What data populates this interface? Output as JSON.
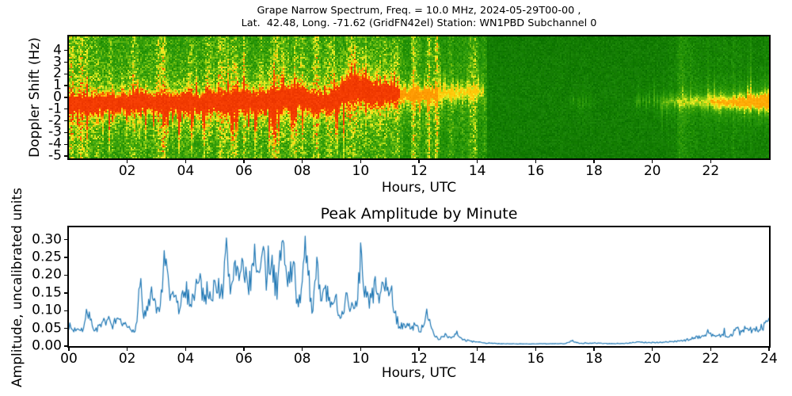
{
  "figure": {
    "title_line1": "Grape Narrow Spectrum, Freq. = 10.0 MHz, 2024-05-29T00-00 ,",
    "title_line2": "Lat.  42.48, Long. -71.62 (GridFN42el) Station: WN1PBD Subchannel 0"
  },
  "chart_data": [
    {
      "type": "heatmap",
      "name": "doppler-spectrogram",
      "xlabel": "Hours, UTC",
      "ylabel": "Doppler Shift (Hz)",
      "xlim": [
        0,
        24
      ],
      "ylim": [
        -5.2,
        5.2
      ],
      "xtick_values": [
        2,
        4,
        6,
        8,
        10,
        12,
        14,
        16,
        18,
        20,
        22
      ],
      "xtick_labels": [
        "02",
        "04",
        "06",
        "08",
        "10",
        "12",
        "14",
        "16",
        "18",
        "20",
        "22"
      ],
      "ytick_values": [
        4,
        3,
        2,
        1,
        0,
        -1,
        -2,
        -3,
        -4,
        -5
      ],
      "ytick_labels": [
        "4",
        "3",
        "2",
        "1",
        "0",
        "-1",
        "-2",
        "-3",
        "-4",
        "-5"
      ],
      "grid": false,
      "colormap": [
        [
          0.0,
          "#0b6e00"
        ],
        [
          0.18,
          "#1d8d06"
        ],
        [
          0.38,
          "#3fa50c"
        ],
        [
          0.52,
          "#7cc413"
        ],
        [
          0.63,
          "#c4e01a"
        ],
        [
          0.72,
          "#f2ea25"
        ],
        [
          0.8,
          "#ffc80a"
        ],
        [
          0.88,
          "#ff8c00"
        ],
        [
          1.0,
          "#f23b00"
        ]
      ],
      "background_noise_segments": [
        [
          0.0,
          11.35,
          0.42
        ],
        [
          11.35,
          12.65,
          0.34
        ],
        [
          12.65,
          14.35,
          0.27
        ],
        [
          14.35,
          20.5,
          0.1
        ],
        [
          20.5,
          24.0,
          0.13
        ]
      ],
      "intensity_caps": [
        [
          0.0,
          11.35,
          1.0
        ],
        [
          11.35,
          12.65,
          0.86
        ],
        [
          12.65,
          14.35,
          0.8
        ],
        [
          14.35,
          24.0,
          0.84
        ]
      ],
      "carrier_trace": [
        [
          0.0,
          -0.5,
          0.85,
          0.35
        ],
        [
          0.5,
          -0.6,
          0.85,
          0.35
        ],
        [
          1.0,
          -0.55,
          0.85,
          0.35
        ],
        [
          1.5,
          -0.5,
          0.88,
          0.35
        ],
        [
          2.0,
          -0.5,
          0.9,
          0.35
        ],
        [
          2.4,
          -0.15,
          0.9,
          0.4
        ],
        [
          2.8,
          -0.5,
          0.9,
          0.35
        ],
        [
          3.5,
          -0.45,
          0.92,
          0.38
        ],
        [
          4.0,
          -0.4,
          0.95,
          0.4
        ],
        [
          4.5,
          -0.5,
          0.92,
          0.38
        ],
        [
          5.0,
          -0.4,
          0.95,
          0.4
        ],
        [
          5.5,
          -0.45,
          0.92,
          0.4
        ],
        [
          6.0,
          -0.3,
          0.95,
          0.42
        ],
        [
          6.5,
          -0.4,
          0.95,
          0.4
        ],
        [
          7.0,
          -0.3,
          0.95,
          0.42
        ],
        [
          7.5,
          -0.05,
          0.92,
          0.4
        ],
        [
          7.9,
          0.25,
          0.9,
          0.4
        ],
        [
          8.2,
          -0.2,
          0.9,
          0.4
        ],
        [
          8.6,
          -0.55,
          0.9,
          0.38
        ],
        [
          9.0,
          -0.35,
          0.9,
          0.4
        ],
        [
          9.3,
          0.1,
          0.95,
          0.45
        ],
        [
          9.6,
          0.75,
          1.0,
          0.5
        ],
        [
          10.0,
          0.7,
          1.0,
          0.5
        ],
        [
          10.4,
          0.5,
          0.95,
          0.45
        ],
        [
          10.8,
          0.35,
          0.9,
          0.42
        ],
        [
          11.1,
          0.3,
          0.8,
          0.4
        ],
        [
          11.35,
          0.2,
          0.62,
          0.32
        ],
        [
          11.8,
          0.15,
          0.58,
          0.3
        ],
        [
          12.3,
          0.2,
          0.55,
          0.3
        ],
        [
          12.65,
          0.3,
          0.5,
          0.3
        ],
        [
          13.0,
          0.4,
          0.45,
          0.3
        ],
        [
          13.6,
          0.5,
          0.42,
          0.3
        ],
        [
          14.2,
          0.5,
          0.35,
          0.3
        ],
        [
          14.35,
          0.4,
          0.0,
          0.3
        ],
        [
          16.0,
          -0.3,
          0.0,
          0.25
        ],
        [
          17.1,
          -0.35,
          0.0,
          0.25
        ],
        [
          17.3,
          -0.35,
          0.14,
          0.22
        ],
        [
          17.8,
          -0.4,
          0.12,
          0.22
        ],
        [
          18.1,
          -0.4,
          0.0,
          0.22
        ],
        [
          19.1,
          -0.35,
          0.0,
          0.22
        ],
        [
          19.4,
          -0.35,
          0.15,
          0.22
        ],
        [
          20.0,
          -0.4,
          0.22,
          0.25
        ],
        [
          20.6,
          -0.35,
          0.28,
          0.25
        ],
        [
          21.2,
          -0.4,
          0.33,
          0.27
        ],
        [
          21.8,
          -0.4,
          0.4,
          0.28
        ],
        [
          22.3,
          -0.38,
          0.55,
          0.3
        ],
        [
          22.8,
          -0.42,
          0.62,
          0.32
        ],
        [
          23.2,
          -0.4,
          0.7,
          0.33
        ],
        [
          23.6,
          -0.4,
          0.8,
          0.35
        ],
        [
          24.0,
          -0.4,
          0.88,
          0.35
        ]
      ],
      "noise": {
        "seed": 20240529,
        "streak_groups": [
          {
            "t0": 0.0,
            "t1": 14.3,
            "count": 80,
            "amp_min": 0.04,
            "amp_max": 0.2
          },
          {
            "t0": 11.35,
            "t1": 12.6,
            "count": 3,
            "amp_min": 0.25,
            "amp_max": 0.35
          },
          {
            "t0": 14.3,
            "t1": 20.8,
            "count": 8,
            "amp_min": 0.02,
            "amp_max": 0.05
          },
          {
            "t0": 20.8,
            "t1": 24.0,
            "count": 22,
            "amp_min": 0.03,
            "amp_max": 0.13
          }
        ]
      }
    },
    {
      "type": "line",
      "name": "peak-amplitude",
      "title": "Peak Amplitude by Minute",
      "xlabel": "Hours, UTC",
      "ylabel": "Amplitude, uncalibrated units",
      "xlim": [
        0,
        24
      ],
      "ylim": [
        0,
        0.335
      ],
      "xtick_values": [
        0,
        2,
        4,
        6,
        8,
        10,
        12,
        14,
        16,
        18,
        20,
        22,
        24
      ],
      "xtick_labels": [
        "00",
        "02",
        "04",
        "06",
        "08",
        "10",
        "12",
        "14",
        "16",
        "18",
        "20",
        "22",
        "24"
      ],
      "ytick_values": [
        0.0,
        0.05,
        0.1,
        0.15,
        0.2,
        0.25,
        0.3
      ],
      "ytick_labels": [
        "0.00",
        "0.05",
        "0.10",
        "0.15",
        "0.20",
        "0.25",
        "0.30"
      ],
      "grid": false,
      "line_color": "#1f77b4",
      "series": [
        {
          "name": "peak_amplitude",
          "x": [
            0.0,
            0.15,
            0.3,
            0.5,
            0.65,
            0.8,
            0.9,
            1.1,
            1.3,
            1.5,
            1.7,
            1.85,
            2.0,
            2.15,
            2.3,
            2.45,
            2.55,
            2.7,
            2.85,
            3.0,
            3.15,
            3.3,
            3.45,
            3.6,
            3.75,
            3.9,
            4.05,
            4.2,
            4.35,
            4.5,
            4.65,
            4.8,
            4.95,
            5.1,
            5.25,
            5.4,
            5.55,
            5.7,
            5.85,
            6.0,
            6.1,
            6.25,
            6.4,
            6.5,
            6.65,
            6.8,
            6.95,
            7.1,
            7.25,
            7.4,
            7.55,
            7.7,
            7.85,
            8.0,
            8.1,
            8.2,
            8.35,
            8.5,
            8.65,
            8.8,
            9.0,
            9.15,
            9.3,
            9.5,
            9.7,
            9.85,
            10.0,
            10.15,
            10.3,
            10.5,
            10.65,
            10.8,
            11.0,
            11.15,
            11.3,
            11.5,
            11.7,
            11.9,
            12.1,
            12.25,
            12.4,
            12.55,
            12.7,
            12.9,
            13.1,
            13.3,
            13.5,
            13.75,
            14.0,
            14.3,
            14.7,
            15.2,
            15.8,
            16.4,
            17.0,
            17.25,
            17.5,
            18.0,
            18.5,
            19.0,
            19.5,
            20.0,
            20.4,
            20.8,
            21.1,
            21.4,
            21.7,
            21.95,
            22.2,
            22.45,
            22.7,
            22.85,
            23.0,
            23.2,
            23.4,
            23.6,
            23.8,
            24.0
          ],
          "y": [
            0.055,
            0.04,
            0.05,
            0.045,
            0.1,
            0.05,
            0.045,
            0.05,
            0.075,
            0.05,
            0.065,
            0.055,
            0.05,
            0.04,
            0.05,
            0.19,
            0.08,
            0.1,
            0.14,
            0.09,
            0.12,
            0.25,
            0.12,
            0.15,
            0.1,
            0.13,
            0.15,
            0.12,
            0.17,
            0.18,
            0.13,
            0.16,
            0.14,
            0.18,
            0.14,
            0.26,
            0.15,
            0.25,
            0.18,
            0.22,
            0.16,
            0.2,
            0.28,
            0.18,
            0.26,
            0.16,
            0.25,
            0.14,
            0.25,
            0.28,
            0.16,
            0.24,
            0.1,
            0.15,
            0.33,
            0.2,
            0.1,
            0.21,
            0.12,
            0.16,
            0.1,
            0.13,
            0.08,
            0.13,
            0.1,
            0.12,
            0.24,
            0.15,
            0.12,
            0.16,
            0.14,
            0.15,
            0.18,
            0.09,
            0.06,
            0.05,
            0.055,
            0.05,
            0.04,
            0.1,
            0.05,
            0.02,
            0.015,
            0.03,
            0.02,
            0.035,
            0.015,
            0.01,
            0.008,
            0.005,
            0.004,
            0.003,
            0.003,
            0.003,
            0.004,
            0.012,
            0.004,
            0.005,
            0.004,
            0.004,
            0.008,
            0.006,
            0.008,
            0.01,
            0.012,
            0.02,
            0.025,
            0.03,
            0.025,
            0.03,
            0.025,
            0.05,
            0.035,
            0.045,
            0.04,
            0.045,
            0.05,
            0.075
          ]
        }
      ],
      "render": {
        "step_minutes": 2,
        "jitter": 0.22,
        "seed": 7
      }
    }
  ]
}
